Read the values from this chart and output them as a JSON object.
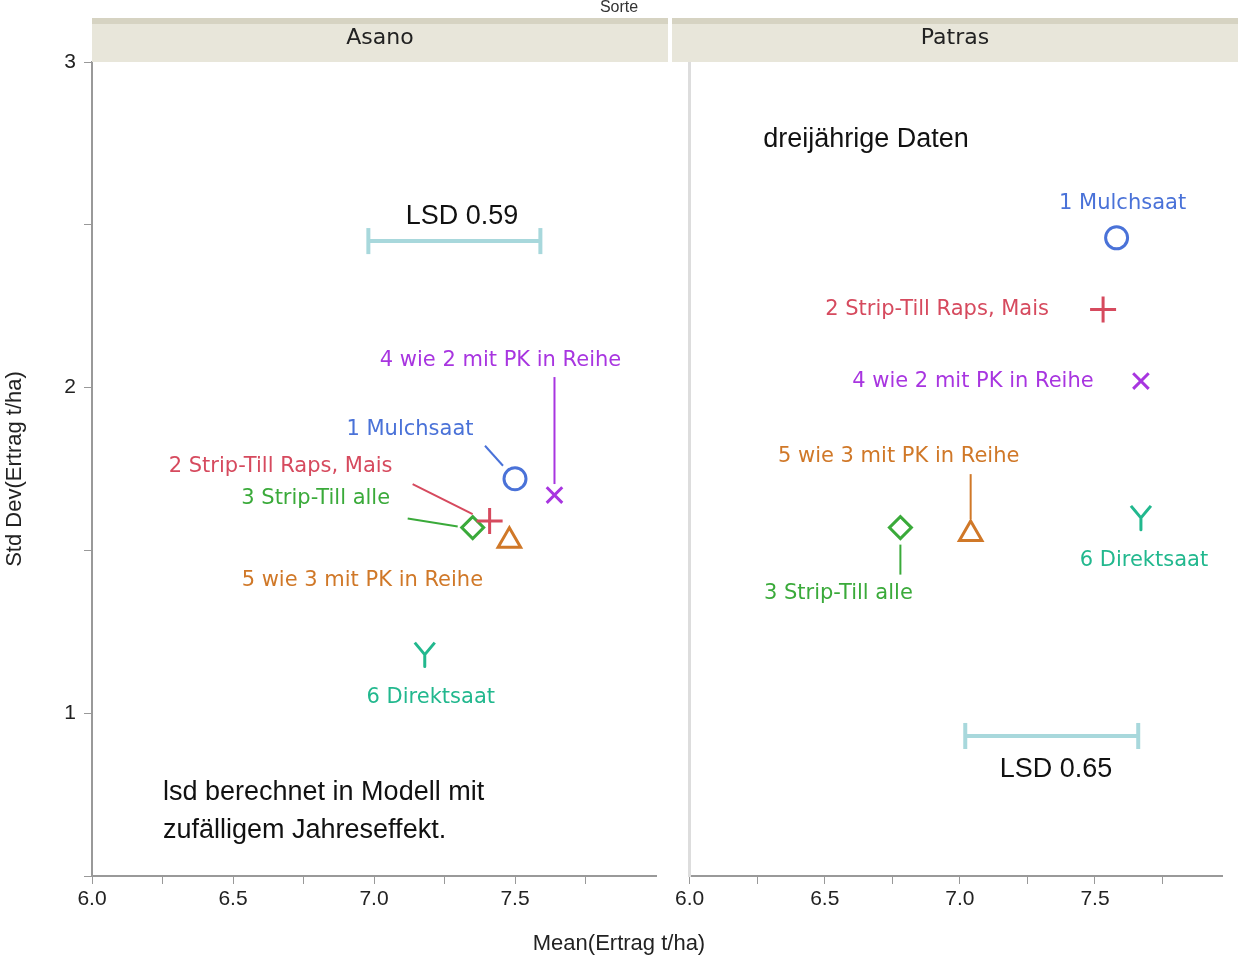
{
  "chart_data": [
    {
      "type": "scatter",
      "title": "Asano",
      "xlabel": "Mean(Ertrag t/ha)",
      "ylabel": "Std Dev(Ertrag t/ha)",
      "xlim": [
        6,
        8
      ],
      "ylim": [
        0.5,
        3
      ],
      "xticks": [
        {
          "value": 6,
          "label": "6.0"
        },
        {
          "value": 6.25,
          "label": null
        },
        {
          "value": 6.5,
          "label": "6.5"
        },
        {
          "value": 6.75,
          "label": null
        },
        {
          "value": 7,
          "label": "7.0"
        },
        {
          "value": 7.25,
          "label": null
        },
        {
          "value": 7.5,
          "label": "7.5"
        },
        {
          "value": 7.75,
          "label": null
        }
      ],
      "yticks": [
        {
          "value": 0.5,
          "label": null
        },
        1,
        {
          "value": 1.5,
          "label": null
        },
        2,
        {
          "value": 2.5,
          "label": null
        },
        3
      ],
      "grid": false,
      "series": [
        {
          "name": "1 Mulchsaat",
          "color": "#4a72d8",
          "marker": "circle",
          "x": [
            7.5
          ],
          "values": [
            1.72
          ]
        },
        {
          "name": "2 Strip-Till Raps, Mais",
          "color": "#d64a5e",
          "marker": "cross",
          "x": [
            7.41
          ],
          "values": [
            1.59
          ]
        },
        {
          "name": "3 Strip-Till alle",
          "color": "#3aaa3a",
          "marker": "diamond",
          "x": [
            7.35
          ],
          "values": [
            1.57
          ]
        },
        {
          "name": "4 wie 2 mit PK in Reihe",
          "color": "#a835e0",
          "marker": "x",
          "x": [
            7.64
          ],
          "values": [
            1.67
          ]
        },
        {
          "name": "5 wie 3 mit PK in Reihe",
          "color": "#d07828",
          "marker": "triangle",
          "x": [
            7.48
          ],
          "values": [
            1.53
          ]
        },
        {
          "name": "6 Direktsaat",
          "color": "#22b88e",
          "x": [
            7.18
          ],
          "values": [
            1.18
          ]
        },
        {
          "type": "line",
          "color": "#a8d8dc",
          "marker": "none",
          "x": [
            6.98,
            7.59
          ],
          "values": [
            2.45,
            2.45
          ],
          "errors": [
            0.04,
            0.04
          ]
        }
      ],
      "annotations": [
        "Sorte",
        "lsd berechnet in Modell mit\nzufälligem Jahreseffekt.",
        "LSD 0.59"
      ]
    },
    {
      "type": "scatter",
      "title": "Patras",
      "xlim": [
        6,
        7.97
      ],
      "ylim": [
        0.5,
        3
      ],
      "tick_labels": "x",
      "xticks": [
        {
          "value": 6,
          "label": "6.0"
        },
        {
          "value": 6.25,
          "label": null
        },
        {
          "value": 6.5,
          "label": "6.5"
        },
        {
          "value": 6.75,
          "label": null
        },
        {
          "value": 7,
          "label": "7.0"
        },
        {
          "value": 7.25,
          "label": null
        },
        {
          "value": 7.5,
          "label": "7.5"
        },
        {
          "value": 7.75,
          "label": null
        }
      ],
      "grid": false,
      "series": [
        {
          "name": "1 Mulchsaat",
          "color": "#4a72d8",
          "marker": "circle",
          "x": [
            7.58
          ],
          "values": [
            2.46
          ]
        },
        {
          "name": "2 Strip-Till Raps, Mais",
          "color": "#d64a5e",
          "marker": "cross",
          "x": [
            7.53
          ],
          "values": [
            2.24
          ]
        },
        {
          "name": "3 Strip-Till alle",
          "color": "#3aaa3a",
          "marker": "diamond",
          "x": [
            6.78
          ],
          "values": [
            1.57
          ]
        },
        {
          "name": "4 wie 2 mit PK in Reihe",
          "color": "#a835e0",
          "marker": "x",
          "x": [
            7.67
          ],
          "values": [
            2.02
          ]
        },
        {
          "name": "5 wie 3 mit PK in Reihe",
          "color": "#d07828",
          "marker": "triangle",
          "x": [
            7.04
          ],
          "values": [
            1.55
          ]
        },
        {
          "name": "6 Direktsaat",
          "color": "#22b88e",
          "x": [
            7.67
          ],
          "values": [
            1.6
          ]
        },
        {
          "type": "line",
          "color": "#a8d8dc",
          "marker": "none",
          "x": [
            7.02,
            7.66
          ],
          "values": [
            0.93,
            0.93
          ],
          "errors": [
            0.04,
            0.04
          ]
        }
      ],
      "annotations": [
        "dreijährige Daten",
        "LSD 0.65"
      ]
    }
  ]
}
